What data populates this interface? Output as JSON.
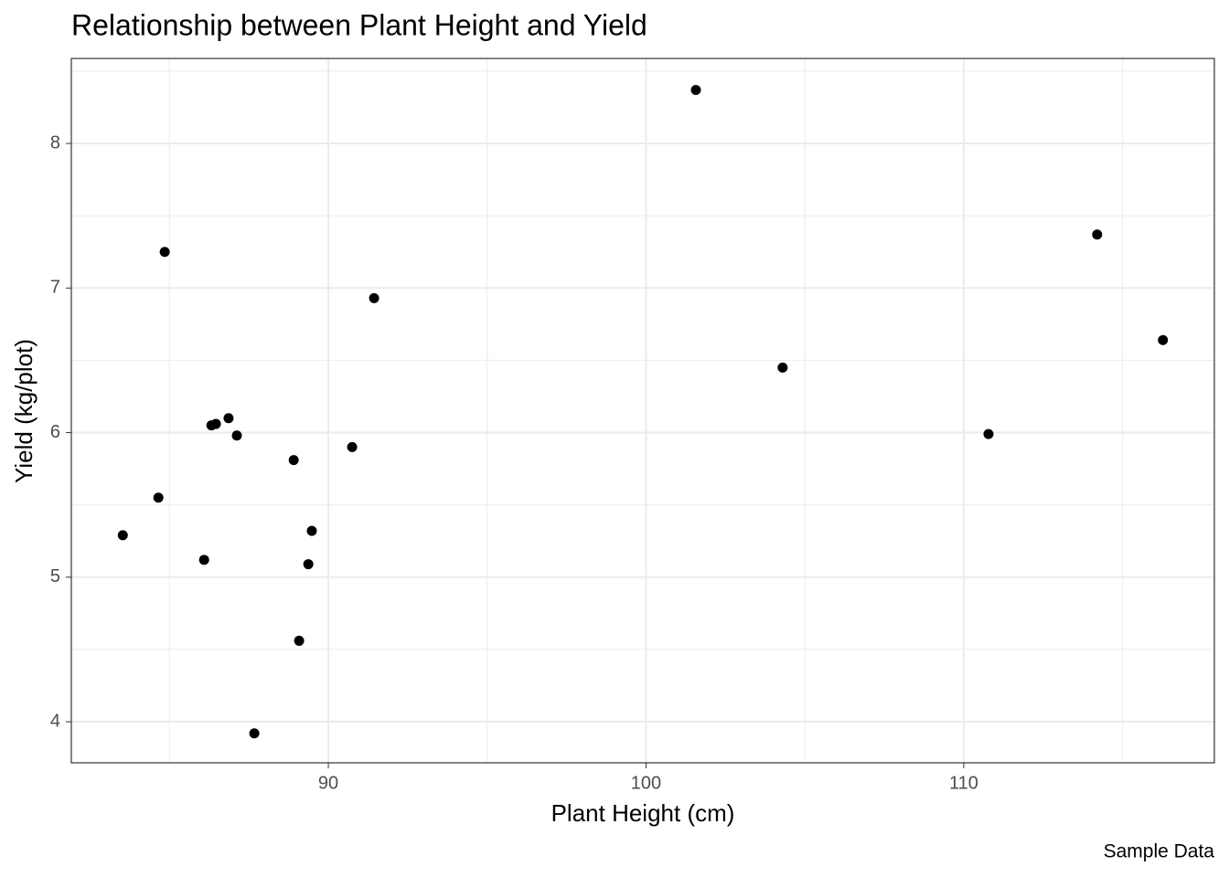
{
  "chart_data": {
    "type": "scatter",
    "title": "Relationship between Plant Height and Yield",
    "x_label": "Plant Height (cm)",
    "y_label": "Yield (kg/plot)",
    "caption": "Sample Data",
    "color": "#000000",
    "grid": true,
    "x": [
      101.57,
      84.85,
      114.2,
      91.44,
      116.27,
      104.3,
      86.86,
      86.46,
      86.32,
      87.12,
      110.78,
      90.75,
      88.91,
      84.65,
      83.53,
      89.48,
      86.09,
      89.37,
      89.08,
      87.67
    ],
    "values": [
      8.37,
      7.25,
      7.37,
      6.93,
      6.64,
      6.45,
      6.1,
      6.06,
      6.05,
      5.98,
      5.99,
      5.9,
      5.81,
      5.55,
      5.29,
      5.32,
      5.12,
      5.09,
      4.56,
      3.92
    ],
    "xlim": [
      81.91,
      117.89
    ],
    "ylim": [
      3.716,
      8.588
    ],
    "xticks": [
      90,
      100,
      110
    ],
    "yticks": [
      4,
      5,
      6,
      7,
      8
    ],
    "x_minor_breaks": [
      85,
      95,
      105,
      115
    ],
    "y_minor_breaks": [
      4.5,
      5.5,
      6.5,
      7.5,
      8.5
    ]
  }
}
